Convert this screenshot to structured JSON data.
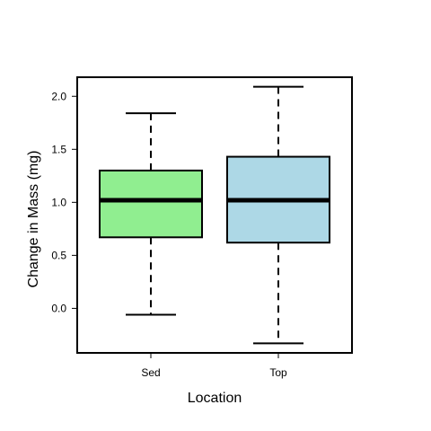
{
  "chart_data": {
    "type": "boxplot",
    "title": "",
    "xlabel": "Location",
    "ylabel": "Change in Mass (mg)",
    "ylim": [
      -0.42,
      2.18
    ],
    "yticks": [
      0.0,
      0.5,
      1.0,
      1.5,
      2.0
    ],
    "ytick_labels": [
      "0.0",
      "0.5",
      "1.0",
      "1.5",
      "2.0"
    ],
    "grid": false,
    "legend": "none",
    "categories": [
      "Sed",
      "Top"
    ],
    "boxes": [
      {
        "category": "Sed",
        "whisker_low": -0.06,
        "q1": 0.67,
        "median": 1.02,
        "q3": 1.3,
        "whisker_high": 1.84,
        "color": "#90ee90"
      },
      {
        "category": "Top",
        "whisker_low": -0.33,
        "q1": 0.62,
        "median": 1.02,
        "q3": 1.43,
        "whisker_high": 2.09,
        "color": "#add8e6"
      }
    ]
  }
}
